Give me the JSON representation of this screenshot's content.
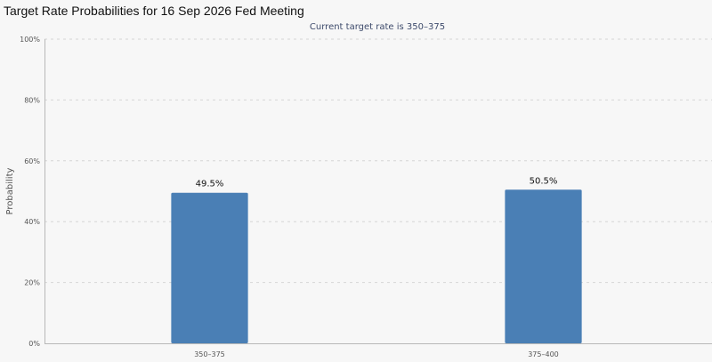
{
  "chart_data": {
    "type": "bar",
    "title": "Target Rate Probabilities for 16 Sep 2026 Fed Meeting",
    "subtitle": "Current target rate is 350–375",
    "xlabel": "",
    "ylabel": "Probability",
    "categories": [
      "350–375",
      "375–400"
    ],
    "values": [
      49.5,
      50.5
    ],
    "data_labels": [
      "49.5%",
      "50.5%"
    ],
    "ylim": [
      0,
      100
    ],
    "yticks": [
      0,
      20,
      40,
      60,
      80,
      100
    ],
    "ytick_labels": [
      "0%",
      "20%",
      "40%",
      "60%",
      "80%",
      "100%"
    ],
    "bar_color": "#4a7fb5",
    "grid": true,
    "legend": "none"
  }
}
